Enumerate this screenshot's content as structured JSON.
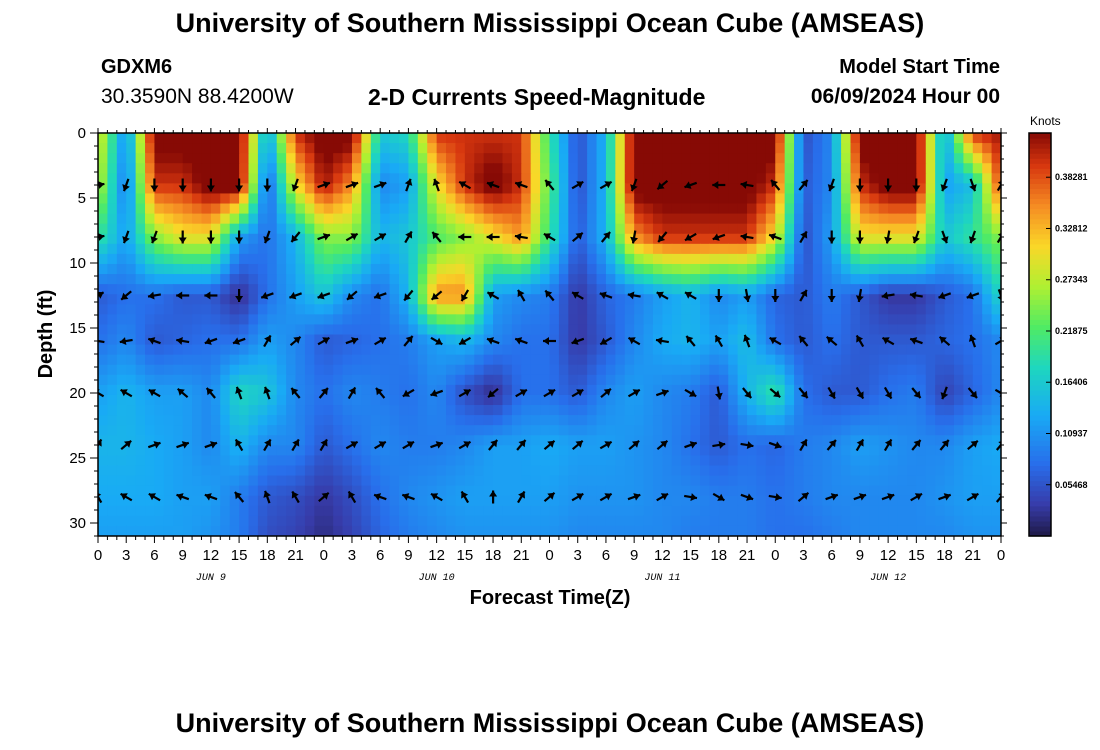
{
  "header": {
    "title": "University of Southern Mississippi Ocean Cube (AMSEAS)",
    "station": "GDXM6",
    "coords": "30.3590N  88.4200W",
    "subtitle": "2-D Currents Speed-Magnitude",
    "model_start_label": "Model Start Time",
    "model_start_value": "06/09/2024 Hour 00"
  },
  "footer": {
    "title": "University of Southern Mississippi Ocean Cube (AMSEAS)"
  },
  "chart_data": {
    "type": "heatmap",
    "title": "2-D Currents Speed-Magnitude",
    "xlabel": "Forecast Time(Z)",
    "ylabel": "Depth (ft)",
    "colorbar_label": "Knots",
    "x_ticks": [
      "0",
      "3",
      "6",
      "9",
      "12",
      "15",
      "18",
      "21",
      "0",
      "3",
      "6",
      "9",
      "12",
      "15",
      "18",
      "21",
      "0",
      "3",
      "6",
      "9",
      "12",
      "15",
      "18",
      "21",
      "0",
      "3",
      "6",
      "9",
      "12",
      "15",
      "18",
      "21",
      "0"
    ],
    "day_labels": [
      {
        "label": "JUN 9",
        "hour": 12
      },
      {
        "label": "JUN 10",
        "hour": 36
      },
      {
        "label": "JUN 11",
        "hour": 60
      },
      {
        "label": "JUN 12",
        "hour": 84
      }
    ],
    "y_ticks": [
      0,
      5,
      10,
      15,
      20,
      25,
      30
    ],
    "xlim": [
      0,
      96
    ],
    "ylim": [
      0,
      31
    ],
    "colorbar_ticks": [
      0.05468,
      0.10937,
      0.16406,
      0.21875,
      0.27343,
      0.32812,
      0.38281
    ],
    "color_range": [
      0,
      0.43
    ],
    "vector_depths": [
      4,
      8,
      12.5,
      16,
      20,
      24,
      28
    ],
    "vector_times": [
      0,
      3,
      6,
      9,
      12,
      15,
      18,
      21,
      24,
      27,
      30,
      33,
      36,
      39,
      42,
      45,
      48,
      51,
      54,
      57,
      60,
      63,
      66,
      69,
      72,
      75,
      78,
      81,
      84,
      87,
      90,
      93,
      96
    ],
    "speed_grid": {
      "depths": [
        0,
        4,
        8,
        12.5,
        16,
        20,
        24,
        28,
        31
      ],
      "times": [
        0,
        3,
        6,
        9,
        12,
        15,
        18,
        21,
        24,
        27,
        30,
        33,
        36,
        39,
        42,
        45,
        48,
        51,
        54,
        57,
        60,
        63,
        66,
        69,
        72,
        75,
        78,
        81,
        84,
        87,
        90,
        93,
        96
      ],
      "values": [
        [
          0.3,
          0.1,
          0.45,
          0.45,
          0.45,
          0.45,
          0.12,
          0.4,
          0.45,
          0.45,
          0.16,
          0.18,
          0.4,
          0.4,
          0.4,
          0.4,
          0.2,
          0.05,
          0.14,
          0.45,
          0.45,
          0.45,
          0.45,
          0.45,
          0.45,
          0.05,
          0.1,
          0.45,
          0.45,
          0.45,
          0.12,
          0.4,
          0.42
        ],
        [
          0.28,
          0.08,
          0.4,
          0.4,
          0.45,
          0.45,
          0.06,
          0.3,
          0.42,
          0.35,
          0.1,
          0.12,
          0.3,
          0.4,
          0.45,
          0.4,
          0.22,
          0.05,
          0.14,
          0.45,
          0.45,
          0.45,
          0.45,
          0.45,
          0.4,
          0.06,
          0.1,
          0.4,
          0.45,
          0.45,
          0.12,
          0.15,
          0.4
        ],
        [
          0.2,
          0.12,
          0.25,
          0.3,
          0.3,
          0.12,
          0.08,
          0.14,
          0.25,
          0.25,
          0.14,
          0.16,
          0.22,
          0.25,
          0.3,
          0.35,
          0.2,
          0.06,
          0.14,
          0.35,
          0.4,
          0.4,
          0.4,
          0.4,
          0.3,
          0.05,
          0.12,
          0.3,
          0.3,
          0.3,
          0.16,
          0.2,
          0.25
        ],
        [
          0.06,
          0.08,
          0.08,
          0.06,
          0.06,
          0.02,
          0.08,
          0.12,
          0.16,
          0.1,
          0.08,
          0.14,
          0.35,
          0.35,
          0.12,
          0.1,
          0.09,
          0.03,
          0.07,
          0.09,
          0.12,
          0.14,
          0.1,
          0.12,
          0.07,
          0.06,
          0.09,
          0.06,
          0.03,
          0.03,
          0.06,
          0.08,
          0.18
        ],
        [
          0.08,
          0.1,
          0.06,
          0.07,
          0.08,
          0.08,
          0.12,
          0.1,
          0.06,
          0.07,
          0.08,
          0.09,
          0.12,
          0.14,
          0.1,
          0.08,
          0.08,
          0.03,
          0.06,
          0.1,
          0.13,
          0.14,
          0.12,
          0.15,
          0.08,
          0.06,
          0.08,
          0.06,
          0.06,
          0.06,
          0.07,
          0.08,
          0.1
        ],
        [
          0.12,
          0.14,
          0.12,
          0.12,
          0.1,
          0.18,
          0.16,
          0.1,
          0.08,
          0.1,
          0.09,
          0.08,
          0.1,
          0.05,
          0.02,
          0.08,
          0.08,
          0.06,
          0.1,
          0.12,
          0.1,
          0.09,
          0.06,
          0.14,
          0.2,
          0.08,
          0.06,
          0.06,
          0.08,
          0.09,
          0.04,
          0.07,
          0.1
        ],
        [
          0.14,
          0.14,
          0.13,
          0.12,
          0.1,
          0.14,
          0.1,
          0.1,
          0.06,
          0.08,
          0.1,
          0.09,
          0.09,
          0.1,
          0.12,
          0.12,
          0.13,
          0.12,
          0.12,
          0.11,
          0.1,
          0.08,
          0.06,
          0.08,
          0.07,
          0.09,
          0.1,
          0.12,
          0.11,
          0.1,
          0.1,
          0.12,
          0.13
        ],
        [
          0.13,
          0.13,
          0.13,
          0.12,
          0.12,
          0.09,
          0.06,
          0.05,
          0.03,
          0.05,
          0.08,
          0.1,
          0.11,
          0.12,
          0.12,
          0.12,
          0.12,
          0.11,
          0.11,
          0.11,
          0.1,
          0.1,
          0.09,
          0.09,
          0.08,
          0.09,
          0.1,
          0.1,
          0.1,
          0.1,
          0.11,
          0.12,
          0.12
        ],
        [
          0.12,
          0.12,
          0.12,
          0.12,
          0.11,
          0.09,
          0.05,
          0.04,
          0.02,
          0.04,
          0.07,
          0.09,
          0.1,
          0.11,
          0.11,
          0.11,
          0.11,
          0.1,
          0.1,
          0.1,
          0.1,
          0.09,
          0.09,
          0.09,
          0.08,
          0.08,
          0.09,
          0.1,
          0.1,
          0.1,
          0.1,
          0.11,
          0.11
        ]
      ]
    },
    "direction_grid": {
      "depths": [
        4,
        8,
        12.5,
        16,
        20,
        24,
        28
      ],
      "times": [
        0,
        3,
        6,
        9,
        12,
        15,
        18,
        21,
        24,
        27,
        30,
        33,
        36,
        39,
        42,
        45,
        48,
        51,
        54,
        57,
        60,
        63,
        66,
        69,
        72,
        75,
        78,
        81,
        84,
        87,
        90,
        93,
        96
      ],
      "values": [
        [
          80,
          200,
          180,
          180,
          180,
          180,
          180,
          200,
          70,
          70,
          70,
          20,
          340,
          300,
          290,
          290,
          320,
          60,
          60,
          200,
          230,
          250,
          270,
          280,
          320,
          40,
          200,
          180,
          180,
          180,
          200,
          160,
          30
        ],
        [
          80,
          200,
          200,
          180,
          180,
          180,
          200,
          220,
          70,
          60,
          60,
          30,
          320,
          270,
          270,
          280,
          300,
          50,
          40,
          190,
          220,
          240,
          250,
          280,
          290,
          30,
          180,
          180,
          190,
          200,
          160,
          200,
          30
        ],
        [
          60,
          230,
          260,
          270,
          270,
          180,
          250,
          250,
          250,
          230,
          250,
          220,
          230,
          210,
          300,
          330,
          320,
          300,
          290,
          280,
          300,
          300,
          180,
          170,
          180,
          30,
          180,
          190,
          260,
          280,
          250,
          250,
          160
        ],
        [
          280,
          260,
          290,
          280,
          250,
          250,
          30,
          50,
          60,
          70,
          60,
          40,
          120,
          240,
          290,
          290,
          270,
          250,
          240,
          300,
          280,
          320,
          330,
          340,
          300,
          320,
          310,
          330,
          300,
          290,
          310,
          340,
          60
        ],
        [
          300,
          300,
          300,
          310,
          320,
          340,
          340,
          320,
          40,
          30,
          320,
          240,
          250,
          60,
          230,
          60,
          60,
          60,
          50,
          60,
          70,
          120,
          170,
          140,
          130,
          140,
          150,
          150,
          150,
          140,
          200,
          140,
          120
        ],
        [
          30,
          50,
          70,
          70,
          70,
          330,
          30,
          30,
          30,
          60,
          60,
          60,
          70,
          60,
          40,
          40,
          50,
          50,
          60,
          50,
          50,
          70,
          80,
          100,
          110,
          30,
          40,
          30,
          30,
          40,
          40,
          50,
          40
        ],
        [
          330,
          300,
          300,
          290,
          290,
          320,
          340,
          330,
          50,
          330,
          290,
          290,
          300,
          330,
          360,
          30,
          50,
          60,
          60,
          70,
          60,
          100,
          120,
          110,
          100,
          50,
          70,
          70,
          70,
          60,
          70,
          60,
          40
        ]
      ]
    }
  }
}
